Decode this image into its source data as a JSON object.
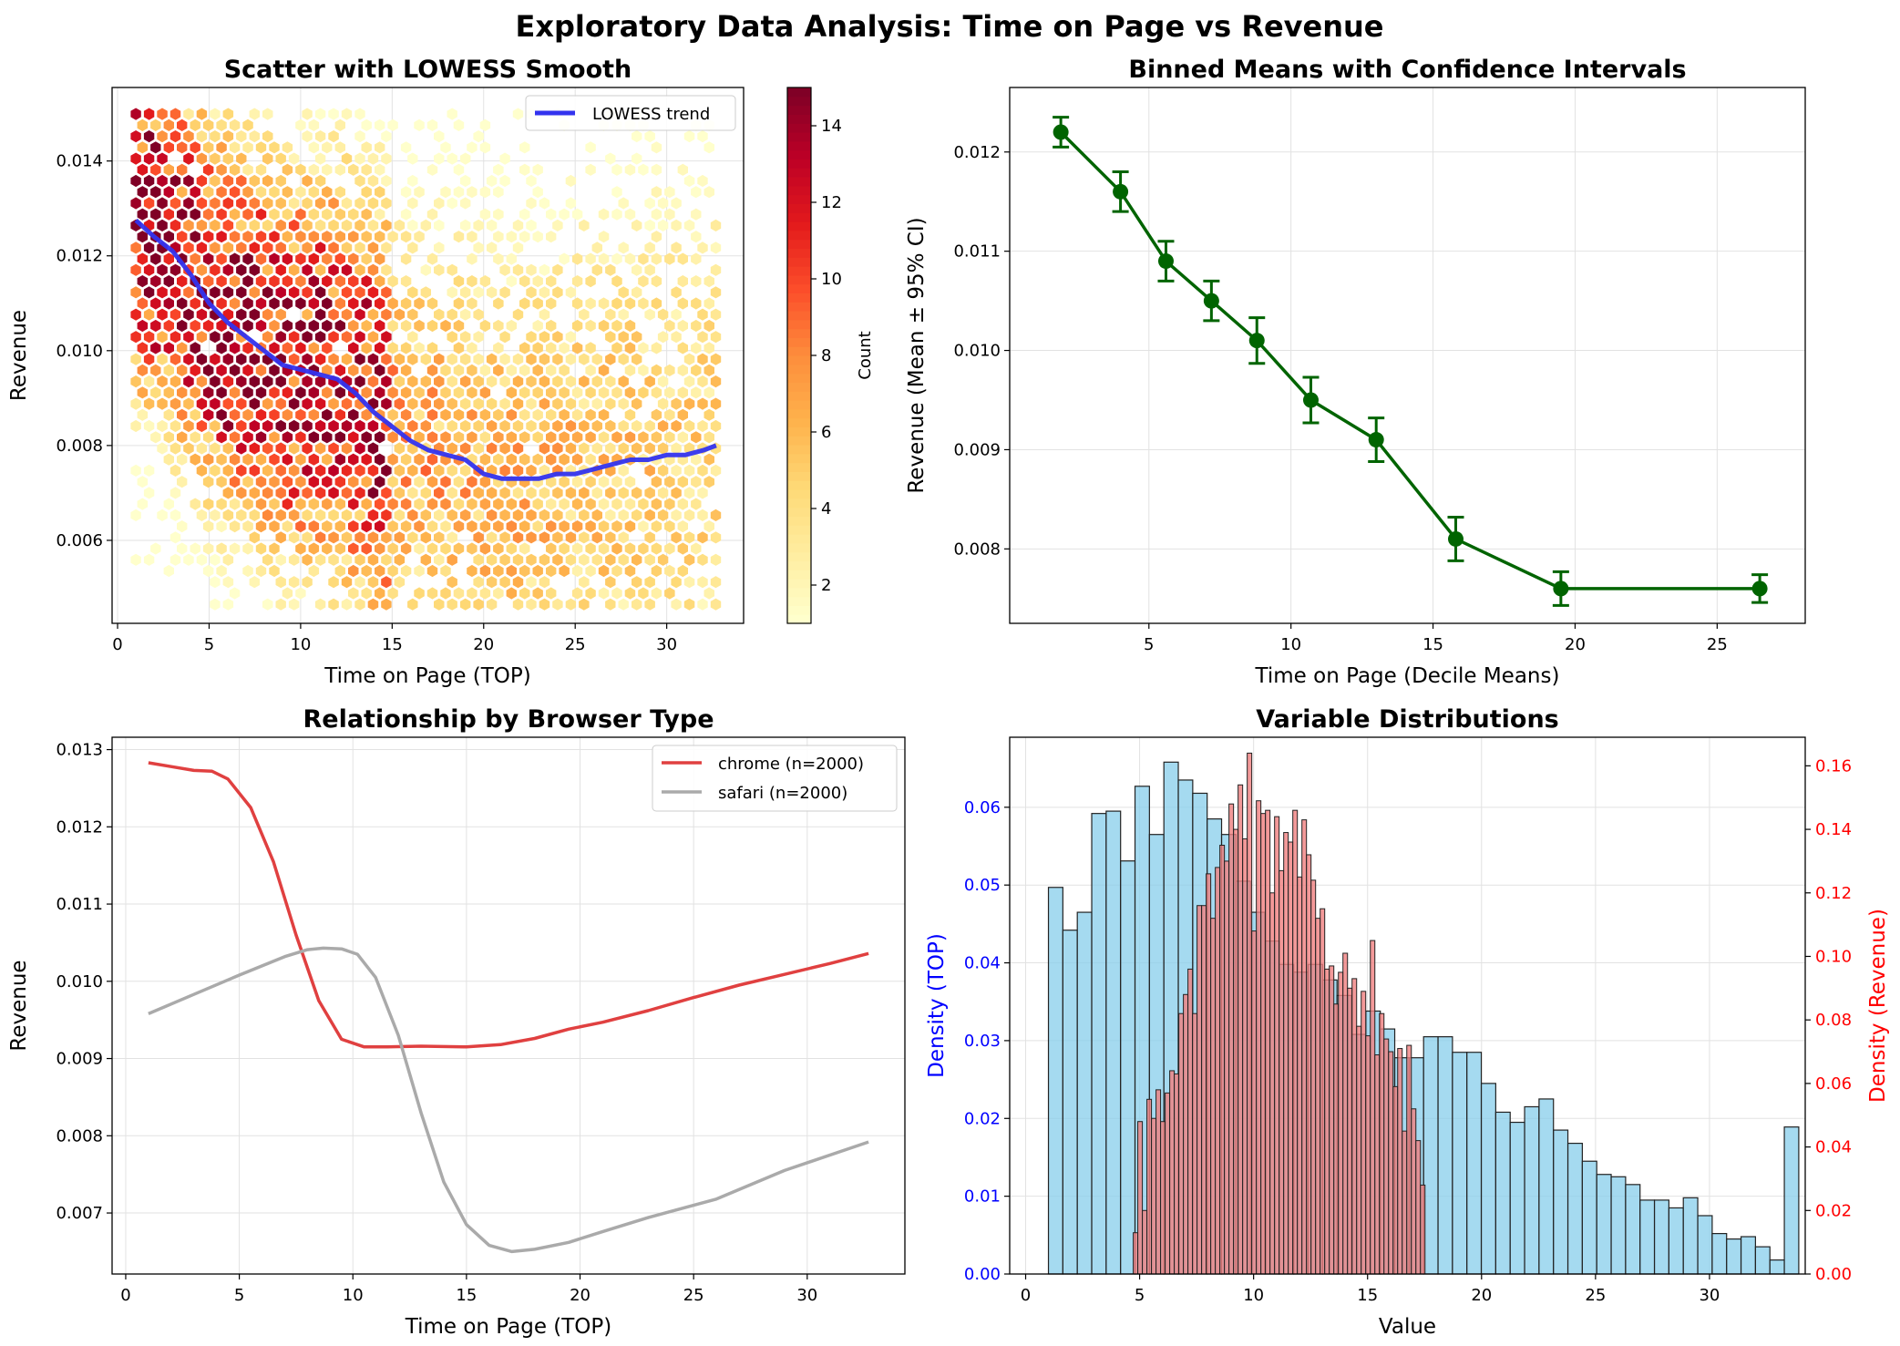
{
  "suptitle": "Exploratory Data Analysis: Time on Page vs Revenue",
  "colors": {
    "lowess": "#3333ee",
    "binned": "#006400",
    "chrome": "#e04040",
    "safari": "#aaaaaa",
    "hist_top": "#87ceeb",
    "hist_rev": "#f08080",
    "left_axis_text": "#0000ff",
    "right_axis_text": "#ff0000"
  },
  "chart_data": [
    {
      "type": "scatter",
      "subtype": "hexbin",
      "title": "Scatter with LOWESS Smooth",
      "xlabel": "Time on Page (TOP)",
      "ylabel": "Revenue",
      "xlim": [
        -0.3,
        34.2
      ],
      "ylim": [
        0.00425,
        0.01555
      ],
      "xticks": [
        0,
        5,
        10,
        15,
        20,
        25,
        30
      ],
      "yticks": [
        0.006,
        0.008,
        0.01,
        0.012,
        0.014
      ],
      "ytick_labels": [
        "0.006",
        "0.008",
        "0.010",
        "0.012",
        "0.014"
      ],
      "colormap": "YlOrRd",
      "colorbar": {
        "label": "Count",
        "min": 1,
        "max": 15,
        "ticks": [
          2,
          4,
          6,
          8,
          10,
          12,
          14
        ]
      },
      "legend": [
        "LOWESS trend"
      ],
      "legend_position": "upper right",
      "grid": true,
      "series": [
        {
          "name": "LOWESS trend",
          "x": [
            1,
            2,
            3,
            4,
            5,
            6,
            7,
            8,
            9,
            10,
            11,
            12,
            13,
            14,
            15,
            16,
            17,
            18,
            19,
            20,
            21,
            22,
            23,
            24,
            25,
            26,
            27,
            28,
            29,
            30,
            31,
            32,
            32.7
          ],
          "y": [
            0.01275,
            0.0124,
            0.0121,
            0.0116,
            0.011,
            0.0106,
            0.0103,
            0.01,
            0.0097,
            0.0096,
            0.0095,
            0.0094,
            0.0091,
            0.0087,
            0.0084,
            0.0081,
            0.0079,
            0.0078,
            0.0077,
            0.0074,
            0.0073,
            0.0073,
            0.0073,
            0.0074,
            0.0074,
            0.0075,
            0.0076,
            0.0077,
            0.0077,
            0.0078,
            0.0078,
            0.0079,
            0.008
          ]
        }
      ]
    },
    {
      "type": "line",
      "subtype": "errorbar",
      "title": "Binned Means with Confidence Intervals",
      "xlabel": "Time on Page (Decile Means)",
      "ylabel": "Revenue (Mean ± 95% CI)",
      "xlim": [
        0.1,
        28.1
      ],
      "ylim": [
        0.00725,
        0.01265
      ],
      "xticks": [
        5,
        10,
        15,
        20,
        25
      ],
      "yticks": [
        0.008,
        0.009,
        0.01,
        0.011,
        0.012
      ],
      "ytick_labels": [
        "0.008",
        "0.009",
        "0.010",
        "0.011",
        "0.012"
      ],
      "grid": true,
      "x": [
        1.9,
        4.0,
        5.6,
        7.2,
        8.8,
        10.7,
        13.0,
        15.8,
        19.5,
        26.5
      ],
      "y": [
        0.0122,
        0.0116,
        0.0109,
        0.0105,
        0.0101,
        0.0095,
        0.0091,
        0.0081,
        0.0076,
        0.0076
      ],
      "err": [
        0.00015,
        0.0002,
        0.0002,
        0.0002,
        0.00023,
        0.00023,
        0.00022,
        0.00022,
        0.00017,
        0.00014
      ]
    },
    {
      "type": "line",
      "title": "Relationship by Browser Type",
      "xlabel": "Time on Page (TOP)",
      "ylabel": "Revenue",
      "xlim": [
        -0.6,
        34.3
      ],
      "ylim": [
        0.00621,
        0.01316
      ],
      "xticks": [
        0,
        5,
        10,
        15,
        20,
        25,
        30
      ],
      "yticks": [
        0.007,
        0.008,
        0.009,
        0.01,
        0.011,
        0.012,
        0.013
      ],
      "ytick_labels": [
        "0.007",
        "0.008",
        "0.009",
        "0.010",
        "0.011",
        "0.012",
        "0.013"
      ],
      "legend_position": "upper right",
      "grid": true,
      "series": [
        {
          "name": "chrome (n=2000)",
          "x": [
            1,
            2,
            3,
            3.8,
            4.5,
            5.5,
            6.5,
            7.5,
            8.5,
            9.5,
            10.5,
            11.5,
            13,
            15,
            16.5,
            18,
            19.5,
            21,
            23,
            25,
            27,
            29,
            31,
            32.7
          ],
          "y": [
            0.01283,
            0.01278,
            0.01273,
            0.01272,
            0.01262,
            0.01225,
            0.01155,
            0.0106,
            0.00975,
            0.00925,
            0.00915,
            0.00915,
            0.00916,
            0.00915,
            0.00918,
            0.00926,
            0.00938,
            0.00947,
            0.00962,
            0.00979,
            0.00995,
            0.01009,
            0.01023,
            0.01036
          ]
        },
        {
          "name": "safari (n=2000)",
          "x": [
            1,
            3,
            5,
            7,
            8,
            8.7,
            9.5,
            10.2,
            11,
            12,
            13,
            14,
            15,
            16,
            17,
            18,
            19.5,
            21,
            23,
            26,
            29,
            32.7
          ],
          "y": [
            0.00958,
            0.00983,
            0.01008,
            0.01032,
            0.01041,
            0.01043,
            0.01042,
            0.01035,
            0.01005,
            0.0093,
            0.0083,
            0.0074,
            0.00685,
            0.00658,
            0.0065,
            0.00653,
            0.00662,
            0.00676,
            0.00694,
            0.00718,
            0.00755,
            0.00792
          ]
        }
      ]
    },
    {
      "type": "bar",
      "subtype": "histogram",
      "title": "Variable Distributions",
      "xlabel": "Value",
      "ylabel": "Density (TOP)",
      "ylabel_right": "Density (Revenue)",
      "xlim": [
        -0.7,
        34.2
      ],
      "xticks": [
        0,
        5,
        10,
        15,
        20,
        25,
        30
      ],
      "ylim_left": [
        0,
        0.069
      ],
      "yticks_left": [
        0.0,
        0.01,
        0.02,
        0.03,
        0.04,
        0.05,
        0.06
      ],
      "ytick_labels_left": [
        "0.00",
        "0.01",
        "0.02",
        "0.03",
        "0.04",
        "0.05",
        "0.06"
      ],
      "ylim_right": [
        0,
        0.169
      ],
      "yticks_right": [
        0.0,
        0.02,
        0.04,
        0.06,
        0.08,
        0.1,
        0.12,
        0.14,
        0.16
      ],
      "ytick_labels_right": [
        "0.00",
        "0.02",
        "0.04",
        "0.06",
        "0.08",
        "0.10",
        "0.12",
        "0.14",
        "0.16"
      ],
      "grid": true,
      "series": [
        {
          "name": "TOP",
          "bin_start": 1.0,
          "bin_width": 0.633,
          "values": [
            0.0497,
            0.0442,
            0.0465,
            0.0592,
            0.0595,
            0.0531,
            0.0627,
            0.0565,
            0.0658,
            0.0635,
            0.0618,
            0.0585,
            0.0565,
            0.0505,
            0.0465,
            0.0428,
            0.0398,
            0.0388,
            0.0398,
            0.0378,
            0.0358,
            0.0308,
            0.0338,
            0.0315,
            0.0278,
            0.0278,
            0.0305,
            0.0305,
            0.0285,
            0.0285,
            0.0245,
            0.0208,
            0.0195,
            0.0215,
            0.0225,
            0.0185,
            0.0168,
            0.0145,
            0.0128,
            0.0125,
            0.0115,
            0.0095,
            0.0095,
            0.0085,
            0.0098,
            0.0075,
            0.0052,
            0.0045,
            0.0048,
            0.0035,
            0.0018,
            0.0189
          ]
        },
        {
          "name": "Revenue",
          "bin_start": 4.72,
          "bin_width": 0.2,
          "values": [
            0.013,
            0.048,
            0.02,
            0.055,
            0.049,
            0.058,
            0.048,
            0.057,
            0.064,
            0.063,
            0.082,
            0.088,
            0.096,
            0.082,
            0.116,
            0.116,
            0.126,
            0.112,
            0.128,
            0.135,
            0.13,
            0.148,
            0.14,
            0.154,
            0.137,
            0.164,
            0.108,
            0.149,
            0.145,
            0.146,
            0.12,
            0.144,
            0.127,
            0.139,
            0.136,
            0.146,
            0.125,
            0.143,
            0.132,
            0.124,
            0.112,
            0.115,
            0.096,
            0.097,
            0.085,
            0.095,
            0.101,
            0.09,
            0.093,
            0.078,
            0.089,
            0.075,
            0.105,
            0.069,
            0.082,
            0.074,
            0.07,
            0.059,
            0.071,
            0.045,
            0.072,
            0.052,
            0.042,
            0.028
          ]
        }
      ]
    }
  ]
}
